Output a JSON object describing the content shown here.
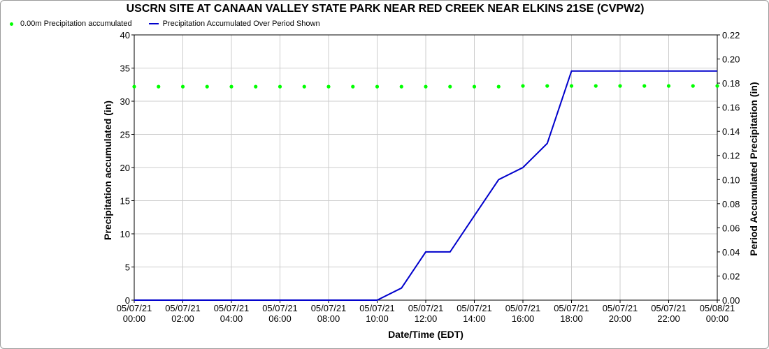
{
  "chart_data": {
    "type": "line",
    "title": "USCRN SITE AT CANAAN VALLEY STATE PARK NEAR RED CREEK NEAR ELKINS 21SE (CVPW2)",
    "xlabel": "Date/Time (EDT)",
    "ylabel_left": "Precipitation accumulated (in)",
    "ylabel_right": "Period Accumulated Precipitation (in)",
    "ylim_left": [
      0,
      40
    ],
    "ylim_right": [
      0,
      0.22
    ],
    "yticks_left": [
      "0",
      "5",
      "10",
      "15",
      "20",
      "25",
      "30",
      "35",
      "40"
    ],
    "yticks_right": [
      "0.00",
      "0.02",
      "0.04",
      "0.06",
      "0.08",
      "0.10",
      "0.12",
      "0.14",
      "0.16",
      "0.18",
      "0.20",
      "0.22"
    ],
    "xticks": [
      {
        "date": "05/07/21",
        "time": "00:00"
      },
      {
        "date": "05/07/21",
        "time": "02:00"
      },
      {
        "date": "05/07/21",
        "time": "04:00"
      },
      {
        "date": "05/07/21",
        "time": "06:00"
      },
      {
        "date": "05/07/21",
        "time": "08:00"
      },
      {
        "date": "05/07/21",
        "time": "10:00"
      },
      {
        "date": "05/07/21",
        "time": "12:00"
      },
      {
        "date": "05/07/21",
        "time": "14:00"
      },
      {
        "date": "05/07/21",
        "time": "16:00"
      },
      {
        "date": "05/07/21",
        "time": "18:00"
      },
      {
        "date": "05/07/21",
        "time": "20:00"
      },
      {
        "date": "05/07/21",
        "time": "22:00"
      },
      {
        "date": "05/08/21",
        "time": "00:00"
      }
    ],
    "grid": true,
    "legend_position": "top-left",
    "series": [
      {
        "name": "0.00m Precipitation accumulated",
        "axis": "left",
        "style": "points",
        "color": "#00ff00",
        "x": [
          "05/07/21 00:00",
          "05/07/21 01:00",
          "05/07/21 02:00",
          "05/07/21 03:00",
          "05/07/21 04:00",
          "05/07/21 05:00",
          "05/07/21 06:00",
          "05/07/21 07:00",
          "05/07/21 08:00",
          "05/07/21 09:00",
          "05/07/21 10:00",
          "05/07/21 11:00",
          "05/07/21 12:00",
          "05/07/21 13:00",
          "05/07/21 14:00",
          "05/07/21 15:00",
          "05/07/21 16:00",
          "05/07/21 17:00",
          "05/07/21 18:00",
          "05/07/21 19:00",
          "05/07/21 20:00",
          "05/07/21 21:00",
          "05/07/21 22:00",
          "05/07/21 23:00",
          "05/08/21 00:00"
        ],
        "values": [
          32.2,
          32.2,
          32.2,
          32.2,
          32.2,
          32.2,
          32.2,
          32.2,
          32.2,
          32.2,
          32.2,
          32.2,
          32.2,
          32.2,
          32.2,
          32.2,
          32.3,
          32.3,
          32.3,
          32.3,
          32.3,
          32.3,
          32.3,
          32.3,
          32.3
        ]
      },
      {
        "name": "Precipitation Accumulated Over Period Shown",
        "axis": "right",
        "style": "line",
        "color": "#0000cc",
        "x": [
          "05/07/21 00:00",
          "05/07/21 01:00",
          "05/07/21 02:00",
          "05/07/21 03:00",
          "05/07/21 04:00",
          "05/07/21 05:00",
          "05/07/21 06:00",
          "05/07/21 07:00",
          "05/07/21 08:00",
          "05/07/21 09:00",
          "05/07/21 10:00",
          "05/07/21 11:00",
          "05/07/21 12:00",
          "05/07/21 13:00",
          "05/07/21 14:00",
          "05/07/21 15:00",
          "05/07/21 16:00",
          "05/07/21 17:00",
          "05/07/21 18:00",
          "05/07/21 19:00",
          "05/07/21 20:00",
          "05/07/21 21:00",
          "05/07/21 22:00",
          "05/07/21 23:00",
          "05/08/21 00:00"
        ],
        "values": [
          0,
          0,
          0,
          0,
          0,
          0,
          0,
          0,
          0,
          0,
          0,
          0.01,
          0.04,
          0.04,
          0.07,
          0.1,
          0.11,
          0.13,
          0.19,
          0.19,
          0.19,
          0.19,
          0.19,
          0.19,
          0.19
        ]
      }
    ]
  }
}
